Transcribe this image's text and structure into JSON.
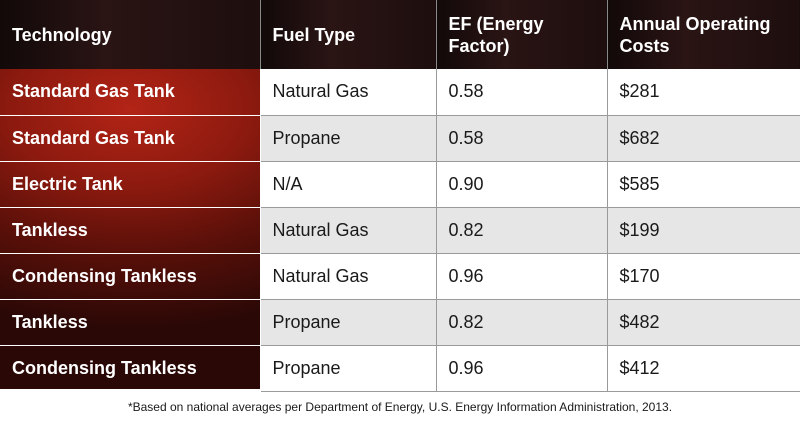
{
  "table": {
    "headers": [
      "Technology",
      "Fuel Type",
      "EF (Energy Factor)",
      "Annual Operating Costs"
    ],
    "rows": [
      {
        "technology": "Standard Gas Tank",
        "fuel": "Natural Gas",
        "ef": "0.58",
        "cost": "$281"
      },
      {
        "technology": "Standard Gas Tank",
        "fuel": "Propane",
        "ef": "0.58",
        "cost": "$682"
      },
      {
        "technology": "Electric Tank",
        "fuel": "N/A",
        "ef": "0.90",
        "cost": "$585"
      },
      {
        "technology": "Tankless",
        "fuel": "Natural Gas",
        "ef": "0.82",
        "cost": "$199"
      },
      {
        "technology": "Condensing Tankless",
        "fuel": "Natural Gas",
        "ef": "0.96",
        "cost": "$170"
      },
      {
        "technology": "Tankless",
        "fuel": "Propane",
        "ef": "0.82",
        "cost": "$482"
      },
      {
        "technology": "Condensing Tankless",
        "fuel": "Propane",
        "ef": "0.96",
        "cost": "$412"
      }
    ]
  },
  "footnote": "*Based on national averages per Department of Energy, U.S. Energy Information Administration, 2013.",
  "colors": {
    "header_bg": "#1e0e0e",
    "tech_column_bg": "#8d1a0f",
    "alt_row_bg": "#e6e6e6"
  }
}
